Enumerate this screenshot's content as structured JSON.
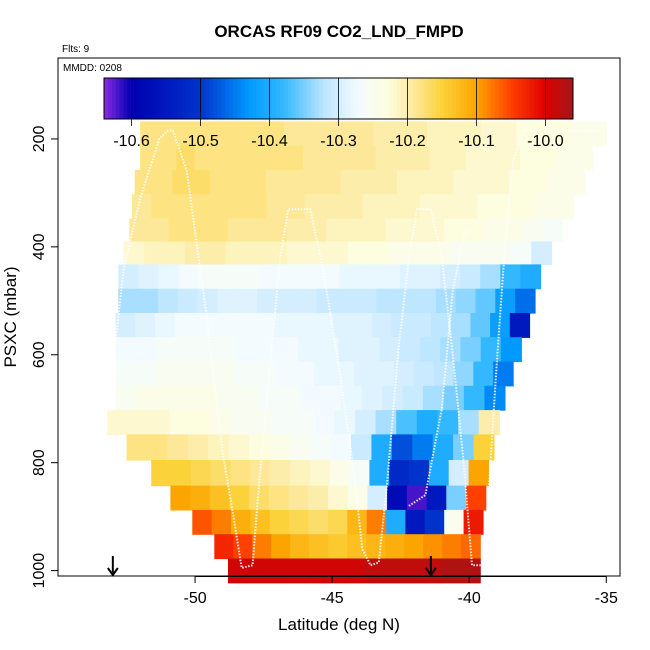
{
  "chart_data": {
    "type": "heatmap",
    "title": "ORCAS RF09 CO2_LND_FMPD",
    "flights_note": "Flts: 9",
    "date_note": "MMDD: 0208",
    "xlabel": "Latitude (deg N)",
    "ylabel": "PSXC (mbar)",
    "xlim": [
      -55,
      -34.5
    ],
    "ylim": [
      1010,
      50
    ],
    "x_ticks": [
      -50,
      -45,
      -40,
      -35
    ],
    "y_ticks": [
      200,
      400,
      600,
      800,
      1000
    ],
    "colorbar": {
      "range": [
        -10.64,
        -9.96
      ],
      "ticks": [
        -10.6,
        -10.5,
        -10.4,
        -10.3,
        -10.2,
        -10.1,
        -10.0
      ],
      "tick_labels": [
        "-10.6",
        "-10.5",
        "-10.4",
        "-10.3",
        "-10.2",
        "-10.1",
        "-10.0"
      ],
      "stops": [
        {
          "v": -10.64,
          "c": "#8a2be2"
        },
        {
          "v": -10.6,
          "c": "#0000b0"
        },
        {
          "v": -10.5,
          "c": "#0033cc"
        },
        {
          "v": -10.43,
          "c": "#0099ff"
        },
        {
          "v": -10.38,
          "c": "#33b8ff"
        },
        {
          "v": -10.32,
          "c": "#bfe6ff"
        },
        {
          "v": -10.27,
          "c": "#f4fbff"
        },
        {
          "v": -10.23,
          "c": "#fdfde0"
        },
        {
          "v": -10.19,
          "c": "#fde89a"
        },
        {
          "v": -10.15,
          "c": "#fcd23a"
        },
        {
          "v": -10.1,
          "c": "#fca500"
        },
        {
          "v": -10.05,
          "c": "#ff4000"
        },
        {
          "v": -10.0,
          "c": "#e00000"
        },
        {
          "v": -9.96,
          "c": "#a01818"
        }
      ]
    },
    "heatmap_rows": [
      {
        "p": 190,
        "x_start": -52.0,
        "x_end": -35.0,
        "values": [
          -10.18,
          -10.18,
          -10.18,
          -10.18,
          -10.18,
          -10.18,
          -10.18,
          -10.18,
          -10.19,
          -10.19,
          -10.19,
          -10.19,
          -10.19,
          -10.2,
          -10.2,
          -10.2,
          -10.21,
          -10.21,
          -10.21,
          -10.22,
          -10.22,
          -10.23,
          -10.23,
          -10.23,
          -10.24,
          -10.24
        ]
      },
      {
        "p": 235,
        "x_start": -52.0,
        "x_end": -35.5,
        "values": [
          -10.18,
          -10.18,
          -10.17,
          -10.18,
          -10.18,
          -10.18,
          -10.18,
          -10.18,
          -10.18,
          -10.19,
          -10.19,
          -10.19,
          -10.19,
          -10.2,
          -10.2,
          -10.2,
          -10.21,
          -10.21,
          -10.22,
          -10.22,
          -10.22,
          -10.23,
          -10.23,
          -10.24,
          -10.24
        ]
      },
      {
        "p": 280,
        "x_start": -52.2,
        "x_end": -35.8,
        "values": [
          -10.18,
          -10.18,
          -10.17,
          -10.17,
          -10.18,
          -10.18,
          -10.18,
          -10.19,
          -10.19,
          -10.19,
          -10.19,
          -10.2,
          -10.2,
          -10.2,
          -10.21,
          -10.21,
          -10.21,
          -10.22,
          -10.22,
          -10.22,
          -10.23,
          -10.23,
          -10.24,
          -10.24
        ]
      },
      {
        "p": 325,
        "x_start": -52.3,
        "x_end": -36.2,
        "values": [
          -10.19,
          -10.18,
          -10.18,
          -10.18,
          -10.18,
          -10.18,
          -10.18,
          -10.19,
          -10.19,
          -10.2,
          -10.2,
          -10.2,
          -10.21,
          -10.21,
          -10.21,
          -10.22,
          -10.22,
          -10.22,
          -10.23,
          -10.23,
          -10.23,
          -10.24,
          -10.24
        ]
      },
      {
        "p": 370,
        "x_start": -52.4,
        "x_end": -36.6,
        "values": [
          -10.19,
          -10.19,
          -10.18,
          -10.18,
          -10.18,
          -10.19,
          -10.19,
          -10.19,
          -10.2,
          -10.2,
          -10.21,
          -10.21,
          -10.21,
          -10.22,
          -10.22,
          -10.22,
          -10.23,
          -10.23,
          -10.24,
          -10.24,
          -10.25,
          -10.26
        ]
      },
      {
        "p": 410,
        "x_start": -52.6,
        "x_end": -37.0,
        "values": [
          -10.22,
          -10.21,
          -10.21,
          -10.2,
          -10.2,
          -10.21,
          -10.21,
          -10.21,
          -10.22,
          -10.22,
          -10.22,
          -10.23,
          -10.23,
          -10.24,
          -10.24,
          -10.24,
          -10.25,
          -10.25,
          -10.25,
          -10.26,
          -10.3
        ]
      },
      {
        "p": 455,
        "x_start": -52.8,
        "x_end": -37.4,
        "values": [
          -10.3,
          -10.29,
          -10.28,
          -10.27,
          -10.26,
          -10.26,
          -10.26,
          -10.27,
          -10.27,
          -10.27,
          -10.27,
          -10.28,
          -10.28,
          -10.28,
          -10.29,
          -10.29,
          -10.3,
          -10.31,
          -10.33,
          -10.38,
          -10.4
        ]
      },
      {
        "p": 500,
        "x_start": -52.8,
        "x_end": -37.6,
        "values": [
          -10.33,
          -10.33,
          -10.32,
          -10.31,
          -10.3,
          -10.29,
          -10.29,
          -10.3,
          -10.3,
          -10.3,
          -10.31,
          -10.31,
          -10.31,
          -10.32,
          -10.32,
          -10.32,
          -10.33,
          -10.34,
          -10.36,
          -10.42,
          -10.46
        ]
      },
      {
        "p": 545,
        "x_start": -52.9,
        "x_end": -37.8,
        "values": [
          -10.3,
          -10.29,
          -10.28,
          -10.27,
          -10.27,
          -10.27,
          -10.27,
          -10.27,
          -10.28,
          -10.28,
          -10.28,
          -10.29,
          -10.29,
          -10.3,
          -10.31,
          -10.31,
          -10.32,
          -10.33,
          -10.36,
          -10.42,
          -10.55
        ]
      },
      {
        "p": 590,
        "x_start": -52.9,
        "x_end": -38.1,
        "values": [
          -10.27,
          -10.27,
          -10.26,
          -10.26,
          -10.26,
          -10.26,
          -10.27,
          -10.27,
          -10.27,
          -10.28,
          -10.28,
          -10.29,
          -10.29,
          -10.3,
          -10.31,
          -10.32,
          -10.33,
          -10.35,
          -10.38,
          -10.43
        ]
      },
      {
        "p": 635,
        "x_start": -52.9,
        "x_end": -38.4,
        "values": [
          -10.26,
          -10.26,
          -10.25,
          -10.25,
          -10.25,
          -10.25,
          -10.26,
          -10.26,
          -10.27,
          -10.27,
          -10.28,
          -10.28,
          -10.29,
          -10.29,
          -10.3,
          -10.31,
          -10.32,
          -10.34,
          -10.38,
          -10.45
        ]
      },
      {
        "p": 680,
        "x_start": -52.9,
        "x_end": -38.7,
        "values": [
          -10.25,
          -10.24,
          -10.24,
          -10.24,
          -10.24,
          -10.25,
          -10.25,
          -10.26,
          -10.26,
          -10.27,
          -10.27,
          -10.28,
          -10.29,
          -10.3,
          -10.31,
          -10.33,
          -10.35,
          -10.38,
          -10.44
        ]
      },
      {
        "p": 725,
        "x_start": -53.2,
        "x_end": -38.9,
        "values": [
          -10.22,
          -10.22,
          -10.22,
          -10.23,
          -10.23,
          -10.24,
          -10.25,
          -10.25,
          -10.26,
          -10.26,
          -10.27,
          -10.28,
          -10.3,
          -10.33,
          -10.37,
          -10.4,
          -10.38,
          -10.33,
          -10.2
        ]
      },
      {
        "p": 770,
        "x_start": -52.5,
        "x_end": -39.1,
        "values": [
          -10.18,
          -10.18,
          -10.19,
          -10.2,
          -10.21,
          -10.22,
          -10.23,
          -10.24,
          -10.25,
          -10.26,
          -10.27,
          -10.31,
          -10.4,
          -10.48,
          -10.45,
          -10.4,
          -10.35,
          -10.15
        ]
      },
      {
        "p": 820,
        "x_start": -51.6,
        "x_end": -39.3,
        "values": [
          -10.15,
          -10.15,
          -10.16,
          -10.17,
          -10.18,
          -10.19,
          -10.2,
          -10.21,
          -10.22,
          -10.24,
          -10.26,
          -10.4,
          -10.52,
          -10.5,
          -10.4,
          -10.3,
          -10.1
        ]
      },
      {
        "p": 865,
        "x_start": -50.9,
        "x_end": -39.4,
        "values": [
          -10.1,
          -10.11,
          -10.13,
          -10.15,
          -10.17,
          -10.18,
          -10.19,
          -10.2,
          -10.22,
          -10.24,
          -10.3,
          -10.58,
          -10.62,
          -10.55,
          -10.35,
          -10.05
        ]
      },
      {
        "p": 910,
        "x_start": -50.1,
        "x_end": -39.5,
        "values": [
          -10.06,
          -10.08,
          -10.11,
          -10.13,
          -10.15,
          -10.16,
          -10.17,
          -10.16,
          -10.12,
          -10.08,
          -10.4,
          -10.55,
          -10.5,
          -10.25,
          -10.02
        ]
      },
      {
        "p": 955,
        "x_start": -49.3,
        "x_end": -39.6,
        "values": [
          -10.03,
          -10.05,
          -10.08,
          -10.1,
          -10.12,
          -10.13,
          -10.14,
          -10.13,
          -10.12,
          -10.11,
          -10.1,
          -10.09,
          -10.08,
          -10.07
        ]
      },
      {
        "p": 1000,
        "x_start": -48.8,
        "x_end": -39.6,
        "values": [
          -9.99,
          -9.99,
          -9.99,
          -9.99,
          -9.99,
          -9.99,
          -9.99,
          -9.98,
          -9.98,
          -9.98,
          -9.98,
          -9.97,
          -9.97
        ]
      }
    ],
    "flight_track": [
      [
        -53.0,
        620
      ],
      [
        -52.6,
        440
      ],
      [
        -52.0,
        310
      ],
      [
        -51.3,
        200
      ],
      [
        -51.0,
        185
      ],
      [
        -50.8,
        185
      ],
      [
        -50.3,
        260
      ],
      [
        -49.6,
        520
      ],
      [
        -49.0,
        780
      ],
      [
        -48.6,
        900
      ],
      [
        -48.3,
        995
      ],
      [
        -47.9,
        990
      ],
      [
        -47.7,
        860
      ],
      [
        -47.3,
        640
      ],
      [
        -46.9,
        420
      ],
      [
        -46.6,
        330
      ],
      [
        -45.8,
        330
      ],
      [
        -45.3,
        450
      ],
      [
        -44.7,
        640
      ],
      [
        -44.2,
        820
      ],
      [
        -43.9,
        960
      ],
      [
        -43.6,
        990
      ],
      [
        -43.3,
        985
      ],
      [
        -43.0,
        840
      ],
      [
        -42.6,
        600
      ],
      [
        -42.2,
        420
      ],
      [
        -41.9,
        330
      ],
      [
        -41.4,
        330
      ],
      [
        -41.0,
        420
      ],
      [
        -40.6,
        600
      ],
      [
        -40.2,
        800
      ],
      [
        -39.9,
        990
      ],
      [
        -39.5,
        990
      ],
      [
        -39.3,
        860
      ],
      [
        -39.0,
        620
      ],
      [
        -38.7,
        400
      ],
      [
        -38.4,
        240
      ],
      [
        -38.0,
        185
      ],
      [
        -37.5,
        185
      ],
      [
        -36.5,
        185
      ],
      [
        -35.3,
        185
      ]
    ],
    "flight_track_2": [
      [
        -42.2,
        880
      ],
      [
        -41.6,
        860
      ],
      [
        -41.0,
        700
      ],
      [
        -40.6,
        480
      ],
      [
        -40.2,
        380
      ],
      [
        -39.9,
        365
      ]
    ],
    "markers": [
      {
        "lat": -53.0,
        "label": "arrow"
      },
      {
        "lat": -41.4,
        "label": "arrow"
      }
    ]
  }
}
